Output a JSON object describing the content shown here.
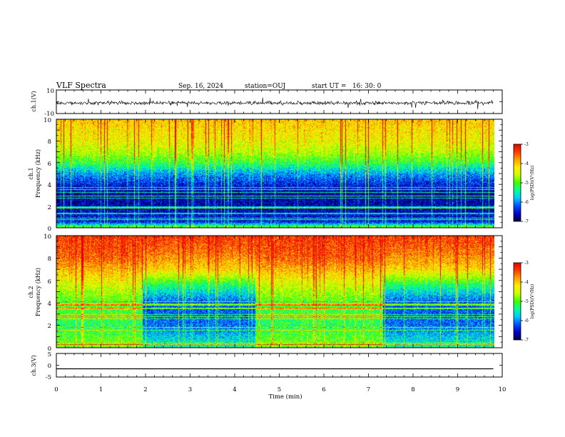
{
  "header": {
    "title": "VLF Spectra",
    "date": "Sep. 16, 2024",
    "station": "station=OUJ",
    "start_ut": "start UT =   16: 30: 0"
  },
  "panels": {
    "ch1_waveform": {
      "ylabel": "ch.1(V)",
      "ticks": [
        "10",
        "-10"
      ]
    },
    "ch1_spectrogram": {
      "ylabel_top": "ch.1",
      "ylabel": "Frequency (kHz)",
      "ticks": [
        "10",
        "8",
        "6",
        "4",
        "2",
        "0"
      ]
    },
    "ch2_spectrogram": {
      "ylabel_top": "ch.2",
      "ylabel": "Frequency (kHz)",
      "ticks": [
        "10",
        "8",
        "6",
        "4",
        "2",
        "0"
      ]
    },
    "ch3_waveform": {
      "ylabel": "ch.3(V)",
      "ticks": [
        "5",
        "0",
        "-5"
      ]
    }
  },
  "colorbar": {
    "label": "log(PSD)(V²/Hz)",
    "ticks": [
      "-3",
      "-4",
      "-5",
      "-6",
      "-7"
    ],
    "colors": [
      "#00003a",
      "#0000c8",
      "#0050ff",
      "#00c8ff",
      "#00ffa0",
      "#3cff00",
      "#c8ff00",
      "#ffee00",
      "#ffa000",
      "#ff3c00",
      "#e60000"
    ]
  },
  "xaxis": {
    "label": "Time (min)",
    "ticks": [
      "0",
      "1",
      "2",
      "3",
      "4",
      "5",
      "6",
      "7",
      "8",
      "9",
      "10"
    ]
  },
  "chart_data": [
    {
      "type": "line",
      "name": "ch1_waveform",
      "xlabel": "",
      "ylabel": "ch.1(V)",
      "xlim": [
        0,
        10
      ],
      "ylim": [
        -10,
        10
      ],
      "data_extent_min": 9.8,
      "mean_value": -1,
      "noise_amplitude": 1.5
    },
    {
      "type": "heatmap",
      "name": "ch1_spectrogram",
      "xlabel": "",
      "ylabel": "Frequency (kHz)",
      "xlim": [
        0,
        10
      ],
      "ylim": [
        0,
        10
      ],
      "data_extent_min": 9.8,
      "zlabel": "log(PSD)(V²/Hz)",
      "zlim": [
        -7,
        -3
      ],
      "frequency_profile_log_psd": [
        {
          "freq_khz": 0.0,
          "log_psd": -4.8
        },
        {
          "freq_khz": 0.5,
          "log_psd": -6.4
        },
        {
          "freq_khz": 1.5,
          "log_psd": -6.6
        },
        {
          "freq_khz": 3.0,
          "log_psd": -6.7
        },
        {
          "freq_khz": 4.0,
          "log_psd": -6.4
        },
        {
          "freq_khz": 5.0,
          "log_psd": -5.9
        },
        {
          "freq_khz": 6.0,
          "log_psd": -5.1
        },
        {
          "freq_khz": 7.0,
          "log_psd": -4.6
        },
        {
          "freq_khz": 8.0,
          "log_psd": -4.3
        },
        {
          "freq_khz": 10.0,
          "log_psd": -4.0
        }
      ]
    },
    {
      "type": "heatmap",
      "name": "ch2_spectrogram",
      "xlabel": "",
      "ylabel": "Frequency (kHz)",
      "xlim": [
        0,
        10
      ],
      "ylim": [
        0,
        10
      ],
      "data_extent_min": 9.8,
      "zlabel": "log(PSD)(V²/Hz)",
      "zlim": [
        -7,
        -3
      ],
      "segments": [
        {
          "t_start_min": 0.0,
          "t_end_min": 1.9,
          "state": "high"
        },
        {
          "t_start_min": 1.9,
          "t_end_min": 4.45,
          "state": "low"
        },
        {
          "t_start_min": 4.45,
          "t_end_min": 7.3,
          "state": "high"
        },
        {
          "t_start_min": 7.3,
          "t_end_min": 9.8,
          "state": "low"
        }
      ],
      "frequency_profile_log_psd_high": [
        {
          "freq_khz": 0.0,
          "log_psd": -4.8
        },
        {
          "freq_khz": 2.0,
          "log_psd": -5.2
        },
        {
          "freq_khz": 4.0,
          "log_psd": -5.0
        },
        {
          "freq_khz": 6.0,
          "log_psd": -4.3
        },
        {
          "freq_khz": 8.0,
          "log_psd": -3.5
        },
        {
          "freq_khz": 10.0,
          "log_psd": -3.3
        }
      ],
      "frequency_profile_log_psd_low": [
        {
          "freq_khz": 0.0,
          "log_psd": -5.4
        },
        {
          "freq_khz": 2.0,
          "log_psd": -6.1
        },
        {
          "freq_khz": 4.0,
          "log_psd": -6.2
        },
        {
          "freq_khz": 5.5,
          "log_psd": -5.3
        },
        {
          "freq_khz": 7.0,
          "log_psd": -4.1
        },
        {
          "freq_khz": 8.5,
          "log_psd": -3.6
        },
        {
          "freq_khz": 10.0,
          "log_psd": -3.3
        }
      ]
    },
    {
      "type": "line",
      "name": "ch3_waveform",
      "xlabel": "Time (min)",
      "ylabel": "ch.3(V)",
      "xlim": [
        0,
        10
      ],
      "ylim": [
        -5,
        5
      ],
      "data_extent_min": 9.8,
      "constant_value": -1.5
    }
  ]
}
